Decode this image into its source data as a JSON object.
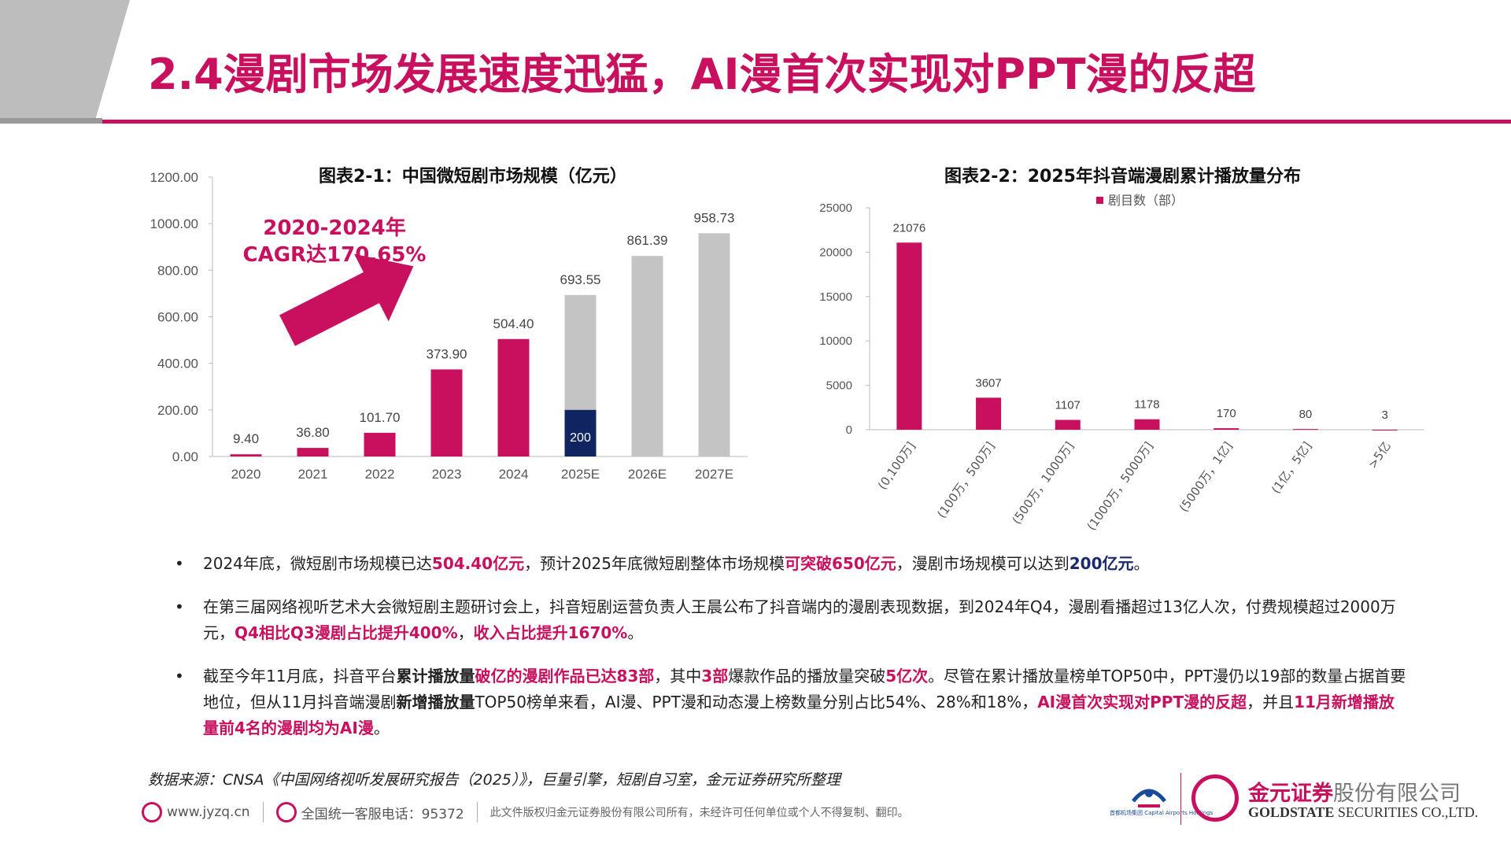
{
  "page": {
    "title": "2.4漫剧市场发展速度迅猛，AI漫首次实现对PPT漫的反超"
  },
  "colors": {
    "accent": "#c8105f",
    "navy": "#0f2460",
    "gray_bar": "#c4c4c4",
    "gray_band": "#bdbdbd"
  },
  "chart1": {
    "title": "图表2-1：中国微短剧市场规模（亿元）",
    "annotation_line1": "2020-2024年",
    "annotation_line2": "CAGR达170.65%"
  },
  "chart2": {
    "title": "图表2-2：2025年抖音端漫剧累计播放量分布",
    "legend": "剧目数（部）"
  },
  "chart_data": [
    {
      "type": "bar",
      "title": "图表2-1：中国微短剧市场规模（亿元）",
      "categories": [
        "2020",
        "2021",
        "2022",
        "2023",
        "2024",
        "2025E",
        "2026E",
        "2027E"
      ],
      "values": [
        9.4,
        36.8,
        101.7,
        373.9,
        504.4,
        693.55,
        861.39,
        958.73
      ],
      "value_labels": [
        "9.40",
        "36.80",
        "101.70",
        "373.90",
        "504.40",
        "693.55",
        "861.39",
        "958.73"
      ],
      "estimate_categories": [
        "2025E",
        "2026E",
        "2027E"
      ],
      "inset": {
        "category": "2025E",
        "value": 200,
        "label": "200"
      },
      "ylim": [
        0,
        1200
      ],
      "yticks": [
        "0.00",
        "200.00",
        "400.00",
        "600.00",
        "800.00",
        "1000.00",
        "1200.00"
      ],
      "ytick_values": [
        0,
        200,
        400,
        600,
        800,
        1000,
        1200
      ],
      "grid": false
    },
    {
      "type": "bar",
      "title": "图表2-2：2025年抖音端漫剧累计播放量分布",
      "categories": [
        "(0,100万]",
        "(100万，500万]",
        "(500万，1000万]",
        "(1000万，5000万]",
        "(5000万，1亿]",
        "(1亿，5亿]",
        ">5亿"
      ],
      "series": [
        {
          "name": "剧目数（部）",
          "values": [
            21076,
            3607,
            1107,
            1178,
            170,
            80,
            3
          ]
        }
      ],
      "value_labels": [
        "21076",
        "3607",
        "1107",
        "1178",
        "170",
        "80",
        "3"
      ],
      "ylim": [
        0,
        25000
      ],
      "yticks": [
        "0",
        "5000",
        "10000",
        "15000",
        "20000",
        "25000"
      ],
      "ytick_values": [
        0,
        5000,
        10000,
        15000,
        20000,
        25000
      ],
      "legend_position": "top",
      "grid": false
    }
  ],
  "bullets": [
    {
      "segments": [
        {
          "t": "2024年底，微短剧市场规模已达",
          "s": "n"
        },
        {
          "t": "504.40亿元",
          "s": "pink"
        },
        {
          "t": "，预计2025年底微短剧整体市场规模",
          "s": "n"
        },
        {
          "t": "可突破650亿元",
          "s": "pink"
        },
        {
          "t": "，漫剧市场规模可以达到",
          "s": "n"
        },
        {
          "t": "200亿元",
          "s": "navy"
        },
        {
          "t": "。",
          "s": "n"
        }
      ]
    },
    {
      "segments": [
        {
          "t": "在第三届网络视听艺术大会微短剧主题研讨会上，抖音短剧运营负责人王晨公布了抖音端内的漫剧表现数据，到2024年Q4，漫剧看播超过13亿人次，付费规模超过2000万元，",
          "s": "n"
        },
        {
          "t": "Q4相比Q3漫剧占比提升400%",
          "s": "pink"
        },
        {
          "t": "，",
          "s": "n"
        },
        {
          "t": "收入占比提升1670%",
          "s": "pink"
        },
        {
          "t": "。",
          "s": "n"
        }
      ]
    },
    {
      "segments": [
        {
          "t": "截至今年11月底，抖音平台",
          "s": "n"
        },
        {
          "t": "累计播放量",
          "s": "bold"
        },
        {
          "t": "破亿的漫剧作品已达83部",
          "s": "pink"
        },
        {
          "t": "，其中",
          "s": "n"
        },
        {
          "t": "3部",
          "s": "pink"
        },
        {
          "t": "爆款作品的播放量突破",
          "s": "n"
        },
        {
          "t": "5亿次",
          "s": "pink"
        },
        {
          "t": "。尽管在累计播放量榜单TOP50中，PPT漫仍以19部的数量占据首要地位，但从11月抖音端漫剧",
          "s": "n"
        },
        {
          "t": "新增播放量",
          "s": "bold"
        },
        {
          "t": "TOP50榜单来看，AI漫、PPT漫和动态漫上榜数量分别占比54%、28%和18%，",
          "s": "n"
        },
        {
          "t": "AI漫首次实现对PPT漫的反超",
          "s": "pink"
        },
        {
          "t": "，并且",
          "s": "n"
        },
        {
          "t": "11月新增播放量前4名的漫剧均为AI漫",
          "s": "pink"
        },
        {
          "t": "。",
          "s": "n"
        }
      ]
    }
  ],
  "footer": {
    "source": "数据来源：CNSA《中国网络视听发展研究报告（2025）》，巨量引擎，短剧自习室，金元证券研究所整理",
    "website": "www.jyzq.cn",
    "hotline": "全国统一客服电话：95372",
    "notice": "此文件版权归金元证券股份有限公司所有，未经许可任何单位或个人不得复制、翻印。"
  },
  "logo": {
    "partner_label": "首都机场集团",
    "partner_en": "Capital Airports Holdings",
    "company_cn_bold": "金元证券",
    "company_cn_rest": "股份有限公司",
    "company_en_bold": "GOLDSTATE",
    "company_en_rest": "SECURITIES CO.,LTD."
  }
}
